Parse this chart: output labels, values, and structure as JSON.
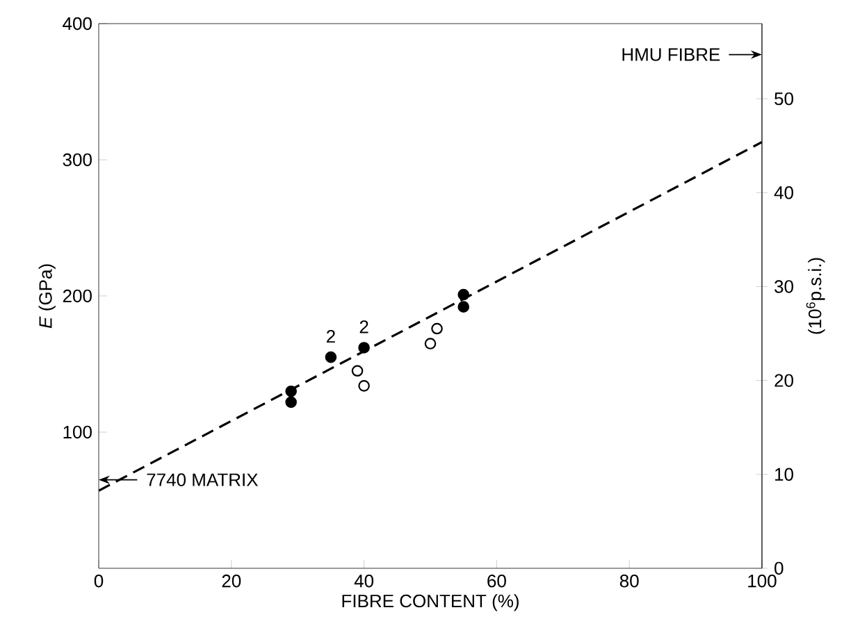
{
  "chart_data": {
    "type": "scatter",
    "xlabel": "FIBRE CONTENT (%)",
    "ylabel": "*E* (GPa)",
    "y2label": "(10$^{6}$p.s.i.)",
    "xlim": [
      0,
      100
    ],
    "xticks": [
      0,
      20,
      40,
      60,
      80,
      100
    ],
    "ylim": [
      0,
      400
    ],
    "yticks": [
      100,
      200,
      300,
      400
    ],
    "y2lim": [
      0,
      58
    ],
    "y2ticks": [
      0,
      10,
      20,
      30,
      40,
      50
    ],
    "grid": false,
    "series": [
      {
        "color": "#000000",
        "marker": "circle",
        "x": [
          29,
          29,
          35,
          40,
          55,
          55
        ],
        "values": [
          130,
          122,
          155,
          162,
          201,
          192
        ]
      },
      {
        "color": "#ffffff",
        "marker": "circle",
        "x": [
          39,
          40,
          50,
          51
        ],
        "values": [
          145,
          134,
          165,
          176
        ]
      },
      {
        "type": "line",
        "color": "#000000",
        "line_style": "dashed",
        "marker": "none",
        "x": [
          0,
          100
        ],
        "values": [
          57,
          313
        ]
      }
    ],
    "annotations": [
      "7740 MATRIX",
      "HMU FIBRE",
      {
        "text": "2",
        "x": 35,
        "y": 155
      },
      {
        "text": "2",
        "x": 40,
        "y": 162
      }
    ]
  }
}
